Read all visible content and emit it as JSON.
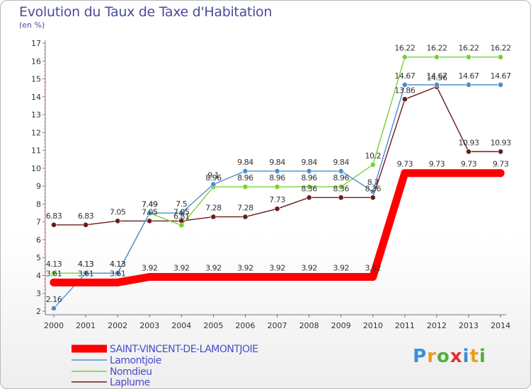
{
  "title": "Evolution du Taux de Taxe d'Habitation",
  "unit_label": "(en %)",
  "logo_text": "Proxiti",
  "chart_data": {
    "type": "line",
    "title": "Evolution du Taux de Taxe d'Habitation",
    "ylabel": "(en %)",
    "x": [
      "2000",
      "2001",
      "2002",
      "2003",
      "2004",
      "2005",
      "2006",
      "2007",
      "2008",
      "2009",
      "2010",
      "2011",
      "2012",
      "2013",
      "2014"
    ],
    "ylim": [
      2,
      17
    ],
    "yticks": [
      2,
      3,
      4,
      5,
      6,
      7,
      8,
      9,
      10,
      11,
      12,
      13,
      14,
      15,
      16,
      17
    ],
    "grid": false,
    "legend_position": "bottom-left",
    "series": [
      {
        "name": "SAINT-VINCENT-DE-LAMONTJOIE",
        "color": "#ff0000",
        "values": [
          3.61,
          3.61,
          3.61,
          3.92,
          3.92,
          3.92,
          3.92,
          3.92,
          3.92,
          3.92,
          3.92,
          9.73,
          9.73,
          9.73,
          9.73
        ],
        "labels": [
          "3.61",
          "3.61",
          "3.61",
          "3.92",
          "3.92",
          "3.92",
          "3.92",
          "3.92",
          "3.92",
          "3.92",
          "3.92",
          "9.73",
          "9.73",
          "9.73",
          "9.73"
        ]
      },
      {
        "name": "Lamontjoie",
        "color": "#4f8fc8",
        "values": [
          2.16,
          4.13,
          4.13,
          7.49,
          7.5,
          9.1,
          9.84,
          9.84,
          9.84,
          9.84,
          8.7,
          14.67,
          14.67,
          14.67,
          14.67
        ],
        "labels": [
          "2.16",
          "4.13",
          "4.13",
          "7.49",
          "7.5",
          "9.1",
          "9.84",
          "9.84",
          "9.84",
          "9.84",
          "8.7",
          "14.67",
          "14.67",
          "14.67",
          "14.67"
        ]
      },
      {
        "name": "Nomdieu",
        "color": "#77d137",
        "values": [
          4.13,
          4.13,
          4.13,
          7.49,
          6.81,
          8.96,
          8.96,
          8.96,
          8.96,
          8.96,
          10.2,
          16.22,
          16.22,
          16.22,
          16.22
        ],
        "labels": [
          "4.13",
          "4.13",
          "4.13",
          "7.49",
          "6.81",
          "8.96",
          "8.96",
          "8.96",
          "8.96",
          "8.96",
          "10.2",
          "16.22",
          "16.22",
          "16.22",
          "16.22"
        ]
      },
      {
        "name": "Laplume",
        "color": "#6b1a1a",
        "values": [
          6.83,
          6.83,
          7.05,
          7.05,
          7.05,
          7.28,
          7.28,
          7.73,
          8.36,
          8.36,
          8.36,
          13.86,
          14.56,
          10.93,
          10.93
        ],
        "labels": [
          "6.83",
          "6.83",
          "7.05",
          "7.05",
          "7.05",
          "7.28",
          "7.28",
          "7.73",
          "8.36",
          "8.36",
          "8.36",
          "13.86",
          "14.56",
          "10.93",
          "10.93"
        ]
      }
    ]
  }
}
